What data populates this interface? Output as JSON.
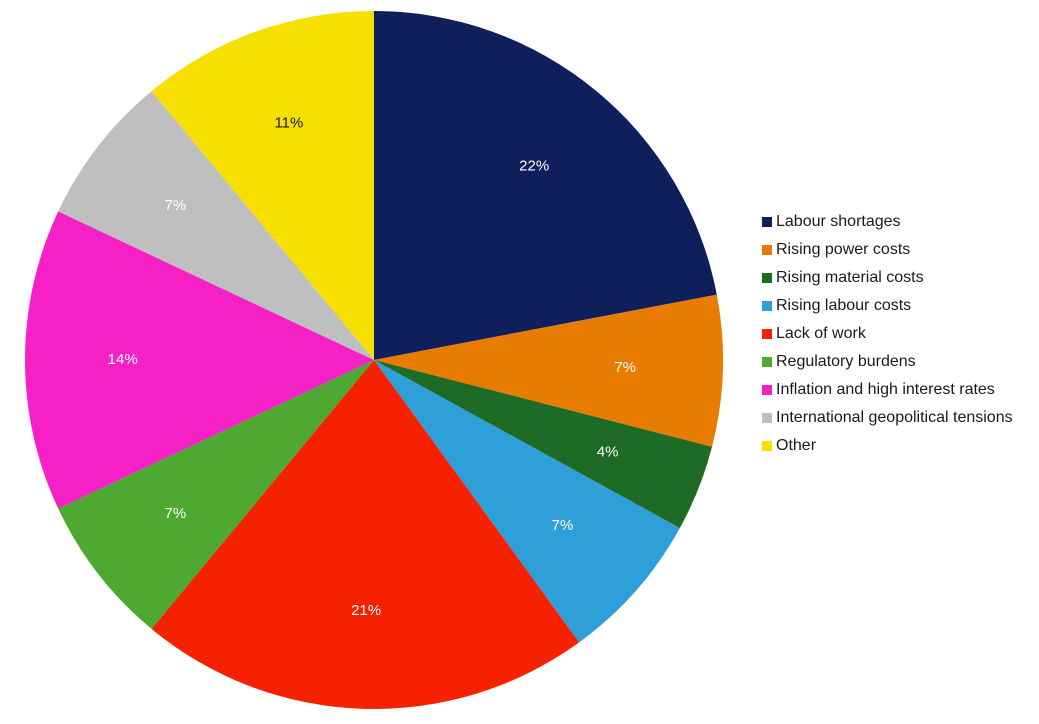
{
  "chart_data": {
    "type": "pie",
    "title": "",
    "slices": [
      {
        "label": "Labour shortages",
        "value": 22,
        "display": "22%",
        "color": "#0f1f5c"
      },
      {
        "label": "Rising power costs",
        "value": 7,
        "display": "7%",
        "color": "#e87c00"
      },
      {
        "label": "Rising material costs",
        "value": 4,
        "display": "4%",
        "color": "#1d6b25"
      },
      {
        "label": "Rising labour costs",
        "value": 7,
        "display": "7%",
        "color": "#2e9fd8"
      },
      {
        "label": "Lack of work",
        "value": 21,
        "display": "21%",
        "color": "#f52100"
      },
      {
        "label": "Regulatory burdens",
        "value": 7,
        "display": "7%",
        "color": "#4ea832"
      },
      {
        "label": "Inflation and high interest rates",
        "value": 14,
        "display": "14%",
        "color": "#f520c6"
      },
      {
        "label": "International geopolitical tensions",
        "value": 7,
        "display": "7%",
        "color": "#bfbfbf"
      },
      {
        "label": "Other",
        "value": 11,
        "display": "11%",
        "color": "#f7df00"
      }
    ],
    "start": "12 o'clock",
    "direction": "clockwise",
    "legend_position": "right"
  }
}
